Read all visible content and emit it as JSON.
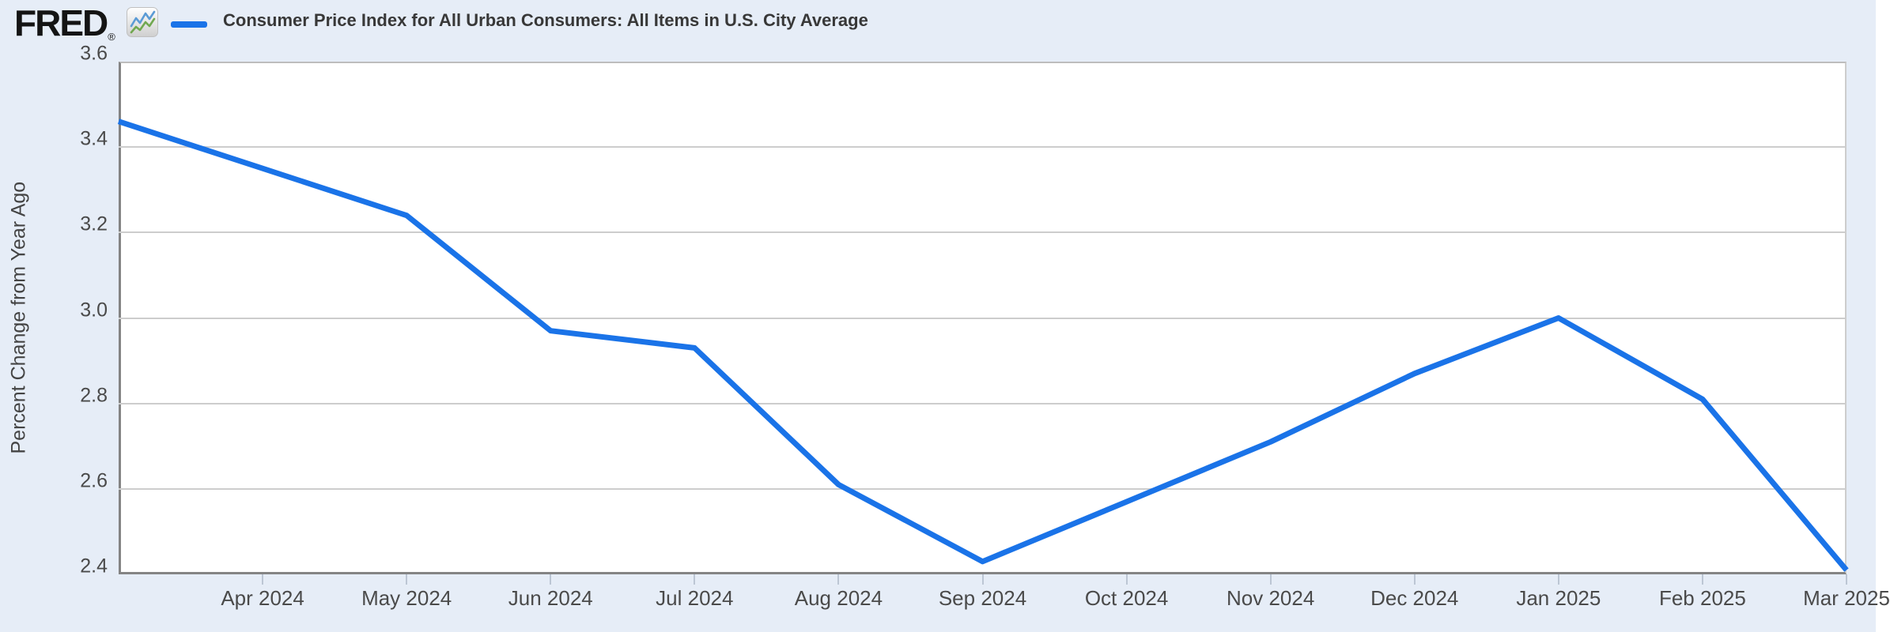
{
  "header": {
    "brand": "FRED",
    "brand_registered": "®",
    "legend_label": "Consumer Price Index for All Urban Consumers: All Items in U.S. City Average"
  },
  "colors": {
    "page_background": "#e6edf7",
    "plot_background": "#ffffff",
    "series_line": "#1a73e8",
    "gridline": "#cdcdcd",
    "axis_dark": "#848484",
    "tick_text": "#4a4a4a",
    "brand_text": "#141414",
    "icon_line_blue": "#5b9bd5",
    "icon_line_green": "#71a850"
  },
  "chart_data": {
    "type": "line",
    "title": "Consumer Price Index for All Urban Consumers: All Items in U.S. City Average",
    "ylabel": "Percent Change from Year Ago",
    "xlabel": "",
    "ylim": [
      2.4,
      3.6
    ],
    "yticks": [
      "2.4",
      "2.6",
      "2.8",
      "3.0",
      "3.2",
      "3.4",
      "3.6"
    ],
    "xticks": [
      "Apr 2024",
      "May 2024",
      "Jun 2024",
      "Jul 2024",
      "Aug 2024",
      "Sep 2024",
      "Oct 2024",
      "Nov 2024",
      "Dec 2024",
      "Jan 2025",
      "Feb 2025",
      "Mar 2025"
    ],
    "grid": true,
    "legend_position": "top-left",
    "series": [
      {
        "name": "Consumer Price Index for All Urban Consumers: All Items in U.S. City Average",
        "x": [
          "Mar 2024",
          "Apr 2024",
          "May 2024",
          "Jun 2024",
          "Jul 2024",
          "Aug 2024",
          "Sep 2024",
          "Oct 2024",
          "Nov 2024",
          "Dec 2024",
          "Jan 2025",
          "Feb 2025",
          "Mar 2025"
        ],
        "values": [
          3.46,
          3.35,
          3.24,
          2.97,
          2.93,
          2.61,
          2.43,
          2.57,
          2.71,
          2.87,
          3.0,
          2.81,
          2.41
        ]
      }
    ]
  }
}
